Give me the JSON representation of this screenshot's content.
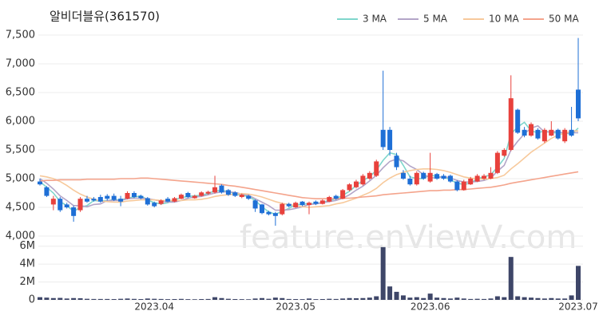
{
  "chart_data": {
    "type": "candlestick",
    "title": "알비더블유(361570)",
    "watermark": "feature.enViewV.com",
    "grid": true,
    "up_color": "#e8413c",
    "down_color": "#1e6fd6",
    "categories": [
      null,
      null,
      null,
      null,
      null,
      null,
      null,
      null,
      null,
      null,
      null,
      null,
      null,
      null,
      null,
      null,
      null,
      "2023.04",
      null,
      null,
      null,
      null,
      null,
      null,
      null,
      null,
      null,
      null,
      null,
      null,
      null,
      null,
      null,
      null,
      null,
      null,
      null,
      null,
      "2023.05",
      null,
      null,
      null,
      null,
      null,
      null,
      null,
      null,
      null,
      null,
      null,
      null,
      null,
      null,
      null,
      null,
      null,
      null,
      null,
      "2023.06",
      null,
      null,
      null,
      null,
      null,
      null,
      null,
      null,
      null,
      null,
      null,
      null,
      null,
      null,
      null,
      null,
      null,
      null,
      null,
      null,
      null,
      "2023.07"
    ],
    "open": [
      4950,
      4850,
      4550,
      4650,
      4550,
      4500,
      4450,
      4650,
      4650,
      4680,
      4700,
      4700,
      4650,
      4650,
      4750,
      4700,
      4660,
      4580,
      4560,
      4650,
      4600,
      4650,
      4750,
      4660,
      4700,
      4740,
      4760,
      4880,
      4800,
      4760,
      4680,
      4700,
      4620,
      4550,
      4420,
      4400,
      4380,
      4560,
      4500,
      4600,
      4540,
      4600,
      4560,
      4600,
      4700,
      4650,
      4800,
      4850,
      4900,
      5000,
      5050,
      5850,
      5850,
      5400,
      5100,
      5000,
      4900,
      5100,
      4950,
      5080,
      5050,
      5050,
      4950,
      4800,
      4900,
      4950,
      5000,
      5000,
      5100,
      5400,
      5500,
      6200,
      5850,
      5750,
      5850,
      5650,
      5750,
      5850,
      5650,
      5850,
      6550
    ],
    "high": [
      5000,
      4870,
      4700,
      4680,
      4580,
      4530,
      4680,
      4700,
      4680,
      4720,
      4730,
      4740,
      4700,
      4780,
      4780,
      4720,
      4680,
      4600,
      4640,
      4680,
      4680,
      4740,
      4770,
      4720,
      4780,
      4790,
      5050,
      4900,
      4820,
      4780,
      4740,
      4720,
      4640,
      4560,
      4440,
      4420,
      4580,
      4580,
      4600,
      4610,
      4600,
      4620,
      4640,
      4700,
      4720,
      4820,
      4920,
      4980,
      5080,
      5130,
      5330,
      6880,
      5900,
      5450,
      5150,
      5050,
      5130,
      5120,
      5450,
      5100,
      5080,
      5070,
      4970,
      4980,
      5030,
      5080,
      5080,
      5200,
      5480,
      5530,
      6800,
      6220,
      5900,
      5980,
      5880,
      5880,
      6000,
      5870,
      5880,
      6250,
      7450
    ],
    "low": [
      4880,
      4680,
      4450,
      4420,
      4480,
      4250,
      4420,
      4580,
      4600,
      4580,
      4620,
      4610,
      4520,
      4640,
      4660,
      4640,
      4530,
      4500,
      4540,
      4590,
      4590,
      4640,
      4660,
      4650,
      4690,
      4720,
      4740,
      4740,
      4700,
      4680,
      4660,
      4630,
      4420,
      4380,
      4360,
      4180,
      4360,
      4500,
      4490,
      4520,
      4380,
      4540,
      4550,
      4590,
      4630,
      4640,
      4780,
      4830,
      4880,
      4980,
      5030,
      5500,
      5400,
      5150,
      4980,
      4880,
      4880,
      4980,
      4930,
      4980,
      4980,
      4930,
      4780,
      4790,
      4890,
      4940,
      4980,
      4990,
      5080,
      5380,
      5480,
      5780,
      5720,
      5730,
      5680,
      5620,
      5740,
      5680,
      5620,
      5730,
      6000
    ],
    "close": [
      4900,
      4700,
      4650,
      4450,
      4500,
      4350,
      4650,
      4600,
      4620,
      4600,
      4650,
      4630,
      4600,
      4750,
      4680,
      4660,
      4550,
      4520,
      4620,
      4600,
      4660,
      4720,
      4680,
      4700,
      4760,
      4770,
      4850,
      4760,
      4720,
      4700,
      4720,
      4650,
      4480,
      4400,
      4380,
      4350,
      4560,
      4520,
      4580,
      4540,
      4580,
      4560,
      4620,
      4680,
      4650,
      4800,
      4900,
      4950,
      5050,
      5100,
      5300,
      5550,
      5500,
      5200,
      5000,
      4900,
      5100,
      5000,
      5100,
      5000,
      5000,
      4950,
      4800,
      4950,
      5000,
      5050,
      5050,
      5100,
      5450,
      5500,
      6400,
      5800,
      5750,
      5950,
      5700,
      5850,
      5850,
      5700,
      5850,
      5750,
      6050
    ],
    "ylim": [
      4000,
      7625
    ],
    "yticks": [
      {
        "value": 4000,
        "label": "4,000"
      },
      {
        "value": 4500,
        "label": "4,500"
      },
      {
        "value": 5000,
        "label": "5,000"
      },
      {
        "value": 5500,
        "label": "5,500"
      },
      {
        "value": 6000,
        "label": "6,000"
      },
      {
        "value": 6500,
        "label": "6,500"
      },
      {
        "value": 7000,
        "label": "7,000"
      },
      {
        "value": 7500,
        "label": "7,500"
      }
    ],
    "series": [
      {
        "name": "3 MA",
        "color": "#7fd6cc",
        "values": [
          4950,
          4850,
          4750,
          4600,
          4530,
          4430,
          4500,
          4530,
          4620,
          4610,
          4620,
          4630,
          4630,
          4660,
          4680,
          4700,
          4630,
          4580,
          4560,
          4580,
          4630,
          4670,
          4690,
          4700,
          4710,
          4740,
          4790,
          4790,
          4780,
          4730,
          4710,
          4690,
          4620,
          4510,
          4420,
          4380,
          4430,
          4480,
          4550,
          4550,
          4570,
          4560,
          4590,
          4620,
          4650,
          4710,
          4780,
          4880,
          4970,
          5030,
          5150,
          5320,
          5450,
          5420,
          5230,
          5030,
          5000,
          5000,
          5070,
          5030,
          5030,
          4980,
          4920,
          4900,
          4920,
          5000,
          5030,
          5070,
          5200,
          5350,
          5780,
          5900,
          5980,
          5830,
          5800,
          5830,
          5800,
          5800,
          5800,
          5770,
          5880
        ]
      },
      {
        "name": "5 MA",
        "color": "#b3a5c8",
        "values": [
          5000,
          4920,
          4820,
          4700,
          4620,
          4530,
          4530,
          4510,
          4550,
          4560,
          4620,
          4620,
          4620,
          4650,
          4660,
          4660,
          4650,
          4630,
          4610,
          4590,
          4590,
          4620,
          4660,
          4680,
          4690,
          4720,
          4750,
          4770,
          4770,
          4760,
          4730,
          4710,
          4650,
          4590,
          4530,
          4450,
          4450,
          4460,
          4480,
          4510,
          4550,
          4560,
          4580,
          4600,
          4620,
          4660,
          4720,
          4800,
          4870,
          4960,
          5060,
          5190,
          5300,
          5340,
          5310,
          5220,
          5160,
          5070,
          5020,
          5010,
          5040,
          5010,
          4970,
          4940,
          4940,
          4950,
          4970,
          5010,
          5130,
          5230,
          5500,
          5650,
          5780,
          5880,
          5920,
          5810,
          5820,
          5820,
          5790,
          5800,
          5800
        ]
      },
      {
        "name": "10 MA",
        "color": "#f7c99b",
        "values": [
          5050,
          5030,
          5000,
          4950,
          4880,
          4800,
          4730,
          4680,
          4640,
          4610,
          4600,
          4590,
          4590,
          4610,
          4620,
          4630,
          4630,
          4630,
          4620,
          4620,
          4620,
          4620,
          4630,
          4630,
          4640,
          4660,
          4690,
          4710,
          4720,
          4730,
          4740,
          4730,
          4710,
          4680,
          4640,
          4600,
          4570,
          4550,
          4530,
          4510,
          4500,
          4510,
          4520,
          4530,
          4560,
          4580,
          4620,
          4660,
          4710,
          4760,
          4830,
          4930,
          5010,
          5070,
          5110,
          5140,
          5160,
          5170,
          5170,
          5160,
          5140,
          5110,
          5070,
          5030,
          5010,
          5000,
          4990,
          5000,
          5020,
          5060,
          5170,
          5260,
          5360,
          5460,
          5540,
          5620,
          5700,
          5760,
          5790,
          5830,
          5830
        ]
      },
      {
        "name": "50 MA",
        "color": "#f4a48c",
        "values": [
          4960,
          4970,
          4970,
          4980,
          4980,
          4980,
          4980,
          4990,
          4990,
          4990,
          4990,
          4990,
          5000,
          5000,
          5000,
          5010,
          5010,
          5000,
          4990,
          4980,
          4970,
          4960,
          4950,
          4940,
          4930,
          4920,
          4910,
          4900,
          4880,
          4870,
          4850,
          4830,
          4810,
          4790,
          4770,
          4750,
          4730,
          4710,
          4690,
          4670,
          4660,
          4650,
          4650,
          4650,
          4650,
          4660,
          4660,
          4670,
          4680,
          4690,
          4700,
          4720,
          4730,
          4740,
          4750,
          4760,
          4770,
          4780,
          4790,
          4790,
          4800,
          4800,
          4810,
          4810,
          4820,
          4830,
          4840,
          4850,
          4870,
          4890,
          4920,
          4940,
          4960,
          4980,
          5000,
          5020,
          5040,
          5060,
          5080,
          5100,
          5120
        ]
      }
    ],
    "volume": {
      "color": "#3e4668",
      "ylim": [
        0,
        6600000
      ],
      "yticks": [
        0,
        {
          "value": 2000000,
          "label": "2M"
        },
        {
          "value": 4000000,
          "label": "4M"
        },
        {
          "value": 6000000,
          "label": "6M"
        }
      ],
      "values": [
        300000,
        250000,
        200000,
        220000,
        150000,
        200000,
        180000,
        120000,
        100000,
        100000,
        100000,
        90000,
        120000,
        150000,
        110000,
        90000,
        150000,
        120000,
        100000,
        80000,
        90000,
        110000,
        80000,
        70000,
        90000,
        100000,
        300000,
        200000,
        120000,
        90000,
        80000,
        70000,
        150000,
        200000,
        120000,
        250000,
        200000,
        100000,
        90000,
        80000,
        150000,
        80000,
        90000,
        120000,
        100000,
        150000,
        200000,
        180000,
        200000,
        250000,
        400000,
        5900000,
        1500000,
        900000,
        500000,
        250000,
        300000,
        200000,
        700000,
        250000,
        200000,
        150000,
        250000,
        150000,
        100000,
        120000,
        100000,
        150000,
        400000,
        300000,
        4800000,
        400000,
        300000,
        250000,
        200000,
        150000,
        200000,
        150000,
        150000,
        500000,
        3800000
      ]
    }
  }
}
